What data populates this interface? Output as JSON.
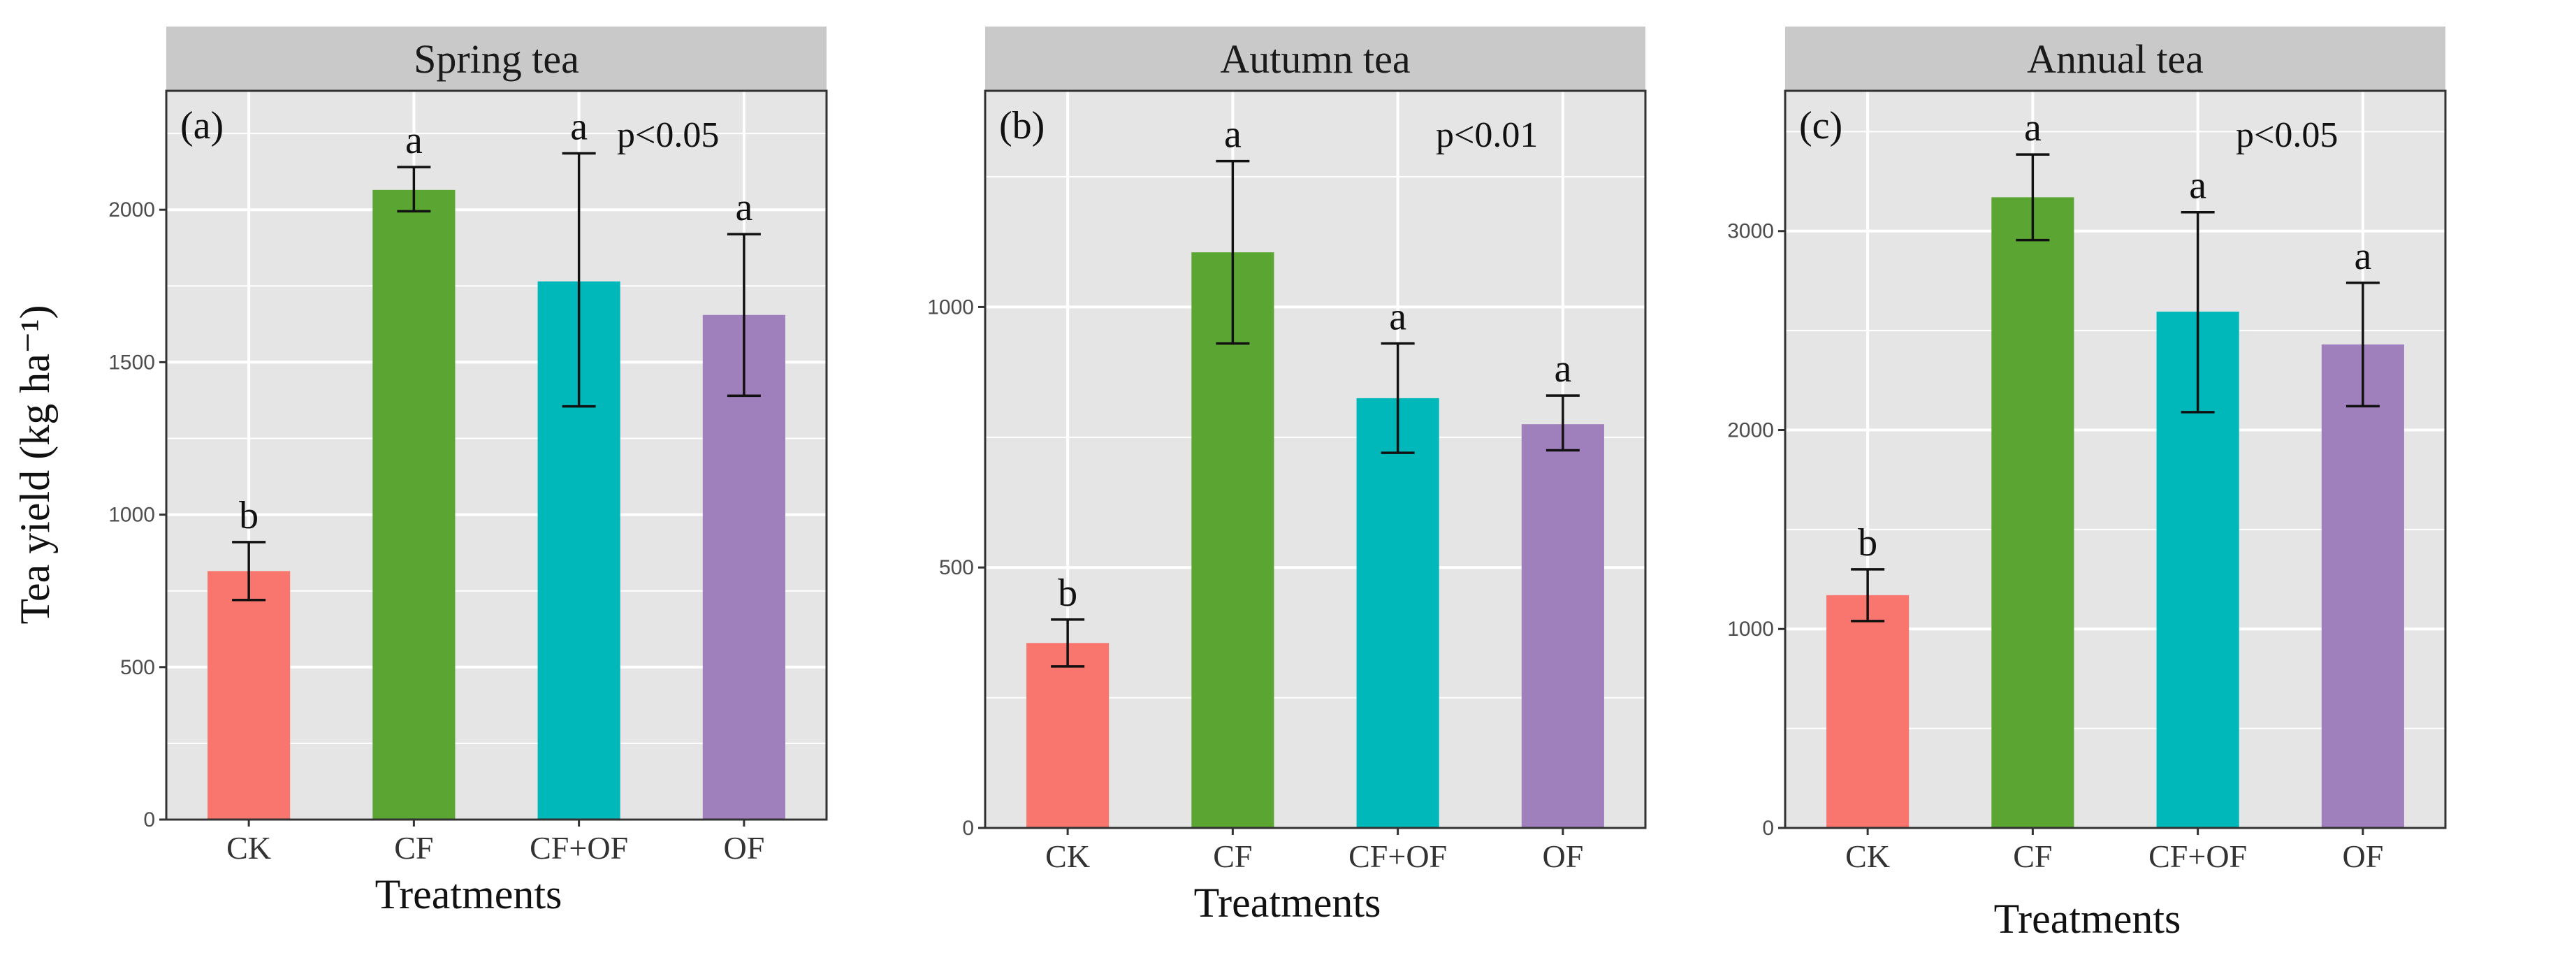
{
  "y_axis_title": "Tea yield (kg ha⁻¹)",
  "colors": {
    "CK": "#f8766d",
    "CF": "#5ba632",
    "CF+OF": "#00b8ba",
    "OF": "#a07fbd",
    "panel_bg": "#e5e5e5",
    "strip_bg": "#c9c9c9",
    "grid": "#ffffff"
  },
  "chart_data": [
    {
      "type": "bar",
      "title": "Spring tea",
      "panel_label": "(a)",
      "p_value": "p<0.05",
      "xlabel": "Treatments",
      "ylabel": "Tea yield (kg ha⁻¹)",
      "categories": [
        "CK",
        "CF",
        "CF+OF",
        "OF"
      ],
      "values": [
        815,
        2065,
        1765,
        1655
      ],
      "error_low": [
        720,
        1995,
        1355,
        1390
      ],
      "error_high": [
        910,
        2140,
        2185,
        1920
      ],
      "significance": [
        "b",
        "a",
        "a",
        "a"
      ],
      "ylim": [
        0,
        2390
      ],
      "yticks": [
        0,
        500,
        1000,
        1500,
        2000
      ]
    },
    {
      "type": "bar",
      "title": "Autumn tea",
      "panel_label": "(b)",
      "p_value": "p<0.01",
      "xlabel": "Treatments",
      "ylabel": "Tea yield (kg ha⁻¹)",
      "categories": [
        "CK",
        "CF",
        "CF+OF",
        "OF"
      ],
      "values": [
        355,
        1105,
        825,
        775
      ],
      "error_low": [
        310,
        930,
        720,
        725
      ],
      "error_high": [
        400,
        1280,
        930,
        830
      ],
      "significance": [
        "b",
        "a",
        "a",
        "a"
      ],
      "ylim": [
        0,
        1415
      ],
      "yticks": [
        0,
        500,
        1000
      ]
    },
    {
      "type": "bar",
      "title": "Annual tea",
      "panel_label": "(c)",
      "p_value": "p<0.05",
      "xlabel": "Treatments",
      "ylabel": "Tea yield (kg ha⁻¹)",
      "categories": [
        "CK",
        "CF",
        "CF+OF",
        "OF"
      ],
      "values": [
        1170,
        3170,
        2595,
        2430
      ],
      "error_low": [
        1040,
        2955,
        2090,
        2120
      ],
      "error_high": [
        1300,
        3385,
        3095,
        2740
      ],
      "significance": [
        "b",
        "a",
        "a",
        "a"
      ],
      "ylim": [
        0,
        3705
      ],
      "yticks": [
        0,
        1000,
        2000,
        3000
      ]
    }
  ]
}
